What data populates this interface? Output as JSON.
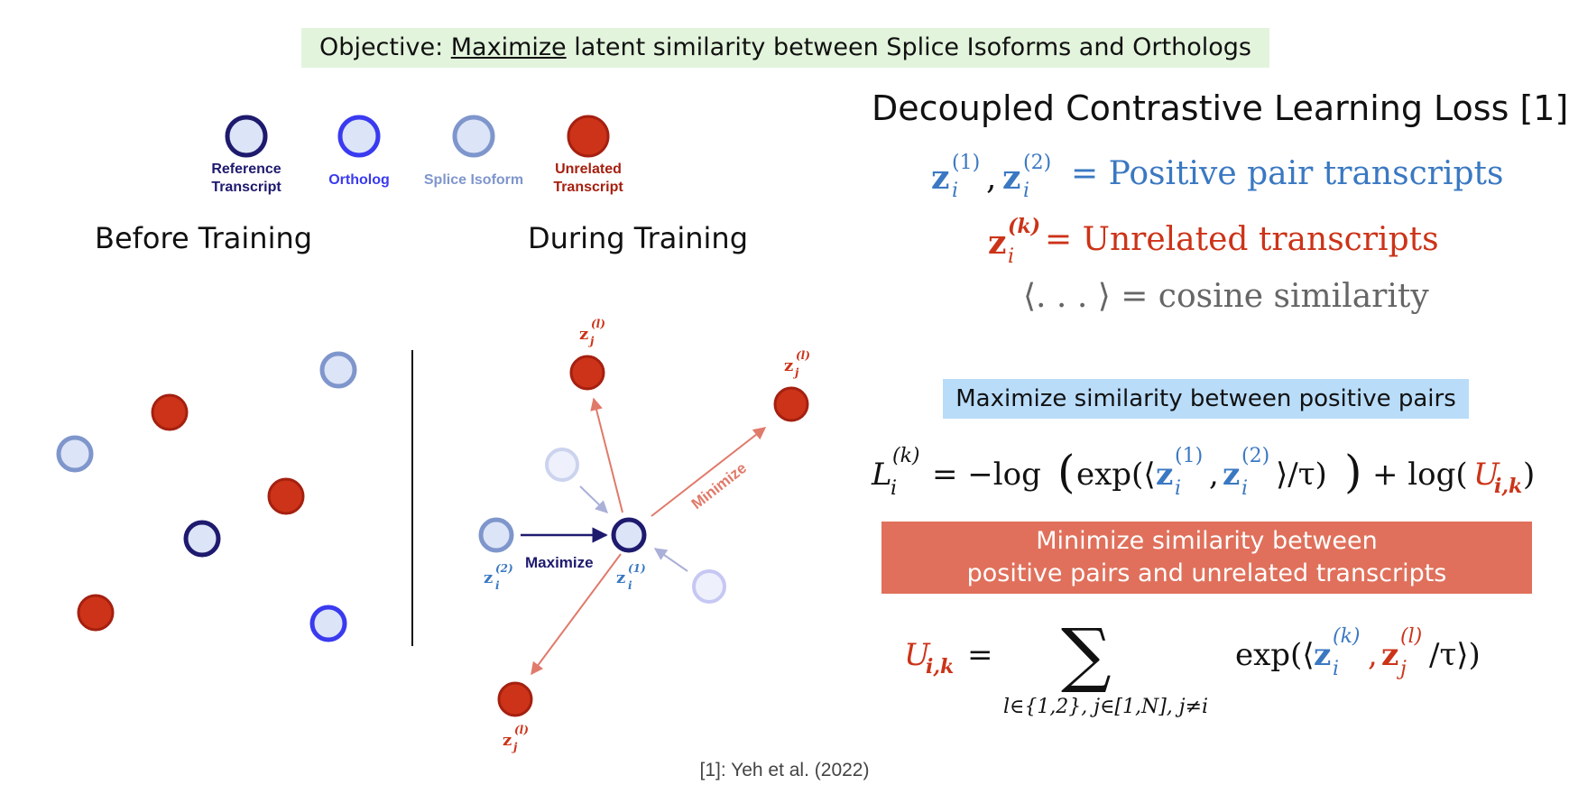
{
  "objective": {
    "prefix": "Objective: ",
    "underlined": "Maximize",
    "rest": " latent similarity between Splice Isoforms and Orthologs"
  },
  "legend": [
    {
      "label": "Reference\nTranscript",
      "fill": "#dce4f7",
      "stroke": "#1e1a6e",
      "text_color": "#1e1a6e"
    },
    {
      "label": "Ortholog",
      "fill": "#dce4f7",
      "stroke": "#3a3af0",
      "text_color": "#3a3af0"
    },
    {
      "label": "Splice Isoform",
      "fill": "#dce4f7",
      "stroke": "#7f96cc",
      "text_color": "#7f96cc"
    },
    {
      "label": "Unrelated\nTranscript",
      "fill": "#cc3318",
      "stroke": "#a52010",
      "text_color": "#a52010"
    }
  ],
  "panels": {
    "before_title": "Before Training",
    "during_title": "During Training"
  },
  "during": {
    "maximize_label": "Maximize",
    "minimize_label": "Minimize",
    "z_i1": "z",
    "z_i1_sup": "(1)",
    "z_i1_sub": "i",
    "z_i2": "z",
    "z_i2_sup": "(2)",
    "z_i2_sub": "i",
    "z_jl": "z",
    "z_jl_sup": "(l)",
    "z_jl_sub": "j"
  },
  "right": {
    "title": "Decoupled Contrastive Learning Loss [1]",
    "line1_lhs": "z",
    "line1_rhs": "= Positive pair transcripts",
    "line2_rhs": "= Unrelated transcripts",
    "line3": "⟨. . . ⟩ = cosine similarity",
    "box_blue": "Maximize similarity between positive pairs",
    "box_red": "Minimize similarity between\npositive pairs and unrelated transcripts",
    "citation": "[1]: Yeh et al. (2022)"
  },
  "colors": {
    "blue_math": "#3a78c2",
    "red_math": "#cc3318",
    "arrow_red": "#e07a6a",
    "arrow_navy": "#1e1a6e",
    "arrow_gray": "#aab0d8",
    "gray_text": "#666666"
  }
}
